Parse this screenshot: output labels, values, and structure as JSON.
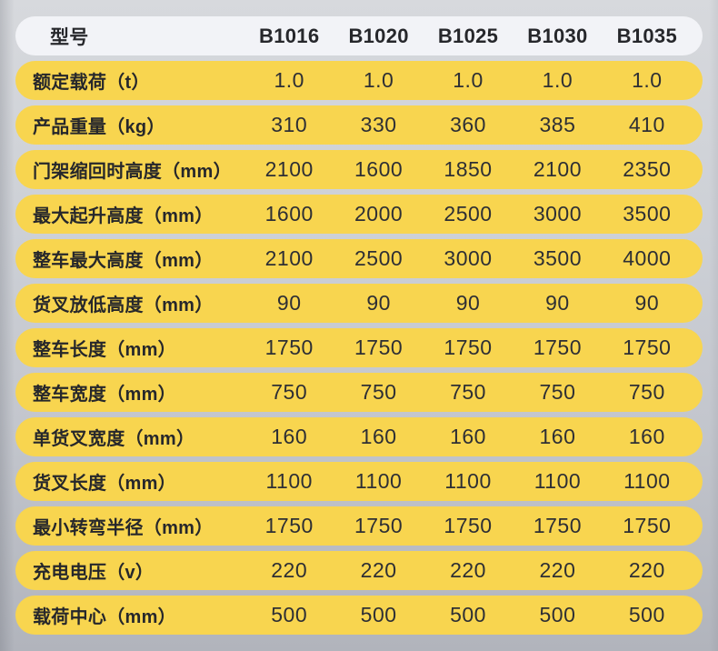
{
  "colors": {
    "row_yellow": "#f8d54f",
    "header_bg": "#f2f3f7",
    "text_dark": "#26272b",
    "text_value": "#2e2f34",
    "background_top": "#d7d9dd",
    "background_bottom": "#b1b4bc"
  },
  "table": {
    "header": {
      "label": "型号",
      "models": [
        "B1016",
        "B1020",
        "B1025",
        "B1030",
        "B1035"
      ]
    },
    "rows": [
      {
        "label": "额定载荷（t）",
        "values": [
          "1.0",
          "1.0",
          "1.0",
          "1.0",
          "1.0"
        ]
      },
      {
        "label": "产品重量（kg）",
        "values": [
          "310",
          "330",
          "360",
          "385",
          "410"
        ]
      },
      {
        "label": "门架缩回时高度（mm）",
        "values": [
          "2100",
          "1600",
          "1850",
          "2100",
          "2350"
        ]
      },
      {
        "label": "最大起升高度（mm）",
        "values": [
          "1600",
          "2000",
          "2500",
          "3000",
          "3500"
        ]
      },
      {
        "label": "整车最大高度（mm）",
        "values": [
          "2100",
          "2500",
          "3000",
          "3500",
          "4000"
        ]
      },
      {
        "label": "货叉放低高度（mm）",
        "values": [
          "90",
          "90",
          "90",
          "90",
          "90"
        ]
      },
      {
        "label": "整车长度（mm）",
        "values": [
          "1750",
          "1750",
          "1750",
          "1750",
          "1750"
        ]
      },
      {
        "label": "整车宽度（mm）",
        "values": [
          "750",
          "750",
          "750",
          "750",
          "750"
        ]
      },
      {
        "label": "单货叉宽度（mm）",
        "values": [
          "160",
          "160",
          "160",
          "160",
          "160"
        ]
      },
      {
        "label": "货叉长度（mm）",
        "values": [
          "1100",
          "1100",
          "1100",
          "1100",
          "1100"
        ]
      },
      {
        "label": "最小转弯半径（mm）",
        "values": [
          "1750",
          "1750",
          "1750",
          "1750",
          "1750"
        ]
      },
      {
        "label": "充电电压（v）",
        "values": [
          "220",
          "220",
          "220",
          "220",
          "220"
        ]
      },
      {
        "label": "载荷中心（mm）",
        "values": [
          "500",
          "500",
          "500",
          "500",
          "500"
        ]
      }
    ]
  }
}
